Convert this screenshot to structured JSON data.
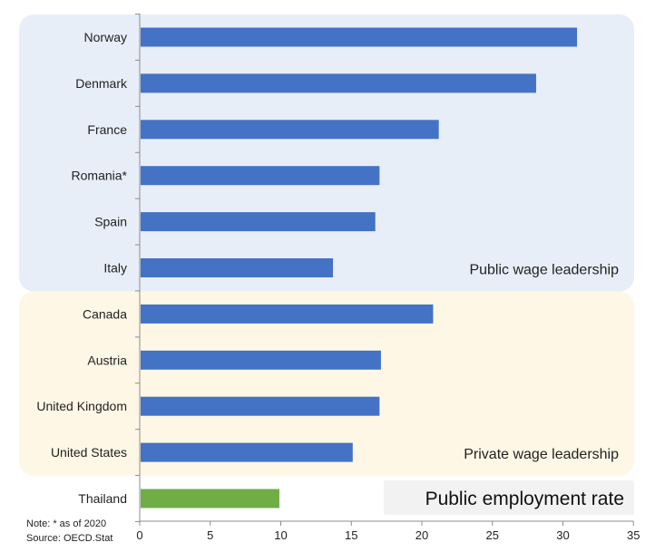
{
  "chart_data": {
    "type": "bar",
    "orientation": "horizontal",
    "title": "",
    "xlabel": "",
    "ylabel": "",
    "xlim": [
      0,
      35
    ],
    "x_ticks": [
      0,
      5,
      10,
      15,
      20,
      25,
      30,
      35
    ],
    "grid": false,
    "categories": [
      "Norway",
      "Denmark",
      "France",
      "Romania*",
      "Spain",
      "Italy",
      "Canada",
      "Austria",
      "United Kingdom",
      "United States",
      "Thailand"
    ],
    "values": [
      31.0,
      28.1,
      21.2,
      17.0,
      16.7,
      13.7,
      20.8,
      17.1,
      17.0,
      15.1,
      9.9
    ],
    "bar_colors": [
      "#4472C4",
      "#4472C4",
      "#4472C4",
      "#4472C4",
      "#4472C4",
      "#4472C4",
      "#4472C4",
      "#4472C4",
      "#4472C4",
      "#4472C4",
      "#70AD47"
    ],
    "groups": [
      {
        "label": "Public wage leadership",
        "categories": [
          "Norway",
          "Denmark",
          "France",
          "Romania*",
          "Spain",
          "Italy"
        ],
        "color": "#E7EEF8"
      },
      {
        "label": "Private wage leadership",
        "categories": [
          "Canada",
          "Austria",
          "United Kingdom",
          "United States"
        ],
        "color": "#FFF7E6"
      }
    ],
    "legend_label": "Public employment rate",
    "legend_color": "#F2F2F2",
    "note": "Note: * as of 2020",
    "source": "Source: OECD.Stat"
  }
}
